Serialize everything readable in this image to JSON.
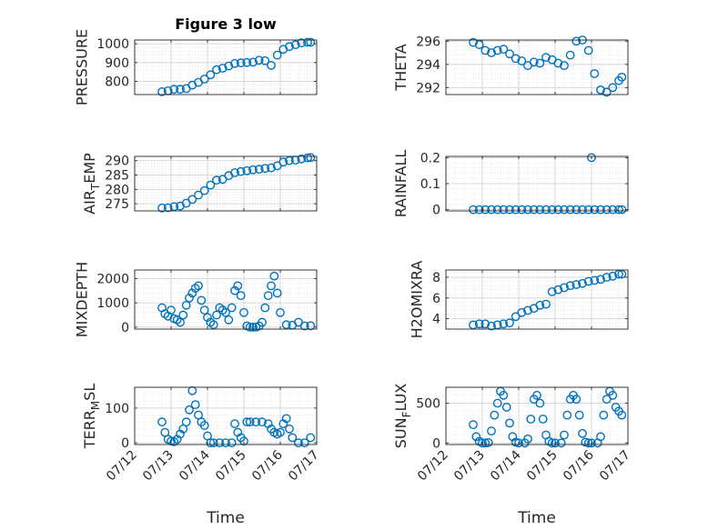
{
  "chart_data": [
    {
      "id": "pressure",
      "type": "scatter",
      "title": "Figure 3 low",
      "ylabel": "PRESSURE",
      "xlabel": "",
      "ylim": [
        730,
        1020
      ],
      "yticks": [
        800,
        900,
        1000
      ],
      "yticklabels": [
        "800",
        "900",
        "1000"
      ],
      "xticks_shown": false,
      "grid": true,
      "x": [
        "07/12 18:00",
        "07/12 22:00",
        "07/13 02:00",
        "07/13 06:00",
        "07/13 10:00",
        "07/13 14:00",
        "07/13 18:00",
        "07/13 22:00",
        "07/14 02:00",
        "07/14 06:00",
        "07/14 10:00",
        "07/14 14:00",
        "07/14 18:00",
        "07/14 22:00",
        "07/15 02:00",
        "07/15 06:00",
        "07/15 10:00",
        "07/15 14:00",
        "07/15 18:00",
        "07/15 22:00",
        "07/16 02:00",
        "07/16 06:00",
        "07/16 10:00",
        "07/16 14:00",
        "07/16 18:00",
        "07/16 20:00"
      ],
      "y": [
        745,
        750,
        758,
        758,
        762,
        780,
        795,
        812,
        835,
        862,
        870,
        882,
        895,
        898,
        900,
        902,
        912,
        910,
        885,
        940,
        970,
        985,
        995,
        1005,
        1008,
        1008
      ]
    },
    {
      "id": "theta",
      "type": "scatter",
      "title": "",
      "ylabel": "THETA",
      "xlabel": "",
      "ylim": [
        291.4,
        296.1
      ],
      "yticks": [
        292,
        294,
        296
      ],
      "yticklabels": [
        "292",
        "294",
        "296"
      ],
      "xticks_shown": false,
      "grid": true,
      "x": [
        "07/12 18:00",
        "07/12 22:00",
        "07/13 02:00",
        "07/13 06:00",
        "07/13 10:00",
        "07/13 14:00",
        "07/13 18:00",
        "07/13 22:00",
        "07/14 02:00",
        "07/14 06:00",
        "07/14 10:00",
        "07/14 14:00",
        "07/14 18:00",
        "07/14 22:00",
        "07/15 02:00",
        "07/15 06:00",
        "07/15 10:00",
        "07/15 14:00",
        "07/15 18:00",
        "07/15 22:00",
        "07/16 02:00",
        "07/16 06:00",
        "07/16 10:00",
        "07/16 14:00",
        "07/16 18:00",
        "07/16 20:00"
      ],
      "y": [
        295.9,
        295.7,
        295.2,
        295.0,
        295.2,
        295.3,
        294.9,
        294.5,
        294.3,
        293.9,
        294.2,
        294.1,
        294.6,
        294.4,
        294.1,
        293.9,
        294.8,
        296.0,
        296.1,
        295.2,
        293.2,
        291.8,
        291.6,
        292.0,
        292.6,
        292.9
      ]
    },
    {
      "id": "air-temp",
      "type": "scatter",
      "title": "",
      "ylabel": "AIR_TEMP",
      "xlabel": "",
      "ylim": [
        272.5,
        291.5
      ],
      "yticks": [
        275,
        280,
        285,
        290
      ],
      "yticklabels": [
        "275",
        "280",
        "285",
        "290"
      ],
      "xticks_shown": false,
      "grid": true,
      "x": [
        "07/12 18:00",
        "07/12 22:00",
        "07/13 02:00",
        "07/13 06:00",
        "07/13 10:00",
        "07/13 14:00",
        "07/13 18:00",
        "07/13 22:00",
        "07/14 02:00",
        "07/14 06:00",
        "07/14 10:00",
        "07/14 14:00",
        "07/14 18:00",
        "07/14 22:00",
        "07/15 02:00",
        "07/15 06:00",
        "07/15 10:00",
        "07/15 14:00",
        "07/15 18:00",
        "07/15 22:00",
        "07/16 02:00",
        "07/16 06:00",
        "07/16 10:00",
        "07/16 14:00",
        "07/16 18:00",
        "07/16 20:00"
      ],
      "y": [
        273.5,
        273.6,
        274.0,
        274.2,
        275.2,
        276.5,
        278.0,
        279.6,
        281.5,
        283.2,
        283.5,
        284.8,
        285.8,
        286.2,
        286.5,
        286.8,
        287.0,
        287.3,
        287.5,
        288.2,
        289.5,
        290.0,
        290.2,
        290.6,
        291.0,
        291.1
      ]
    },
    {
      "id": "rainfall",
      "type": "scatter",
      "title": "",
      "ylabel": "RAINFALL",
      "xlabel": "",
      "ylim": [
        -0.005,
        0.205
      ],
      "yticks": [
        0,
        0.1,
        0.2
      ],
      "yticklabels": [
        "0",
        "0.1",
        "0.2"
      ],
      "xticks_shown": false,
      "grid": true,
      "x": [
        "07/12 18:00",
        "07/12 22:00",
        "07/13 02:00",
        "07/13 06:00",
        "07/13 10:00",
        "07/13 14:00",
        "07/13 18:00",
        "07/13 22:00",
        "07/14 02:00",
        "07/14 06:00",
        "07/14 10:00",
        "07/14 14:00",
        "07/14 18:00",
        "07/14 22:00",
        "07/15 02:00",
        "07/15 06:00",
        "07/15 10:00",
        "07/15 14:00",
        "07/15 18:00",
        "07/15 22:00",
        "07/16 00:00",
        "07/16 02:00",
        "07/16 06:00",
        "07/16 10:00",
        "07/16 14:00",
        "07/16 18:00",
        "07/16 20:00"
      ],
      "y": [
        0,
        0,
        0,
        0,
        0,
        0,
        0,
        0,
        0,
        0,
        0,
        0,
        0,
        0,
        0,
        0,
        0,
        0,
        0,
        0,
        0.2,
        0,
        0,
        0,
        0,
        0,
        0
      ]
    },
    {
      "id": "mixdepth",
      "type": "scatter",
      "title": "",
      "ylabel": "MIXDEPTH",
      "xlabel": "",
      "ylim": [
        -80,
        2350
      ],
      "yticks": [
        0,
        1000,
        2000
      ],
      "yticklabels": [
        "0",
        "1000",
        "2000"
      ],
      "xticks_shown": false,
      "grid": true,
      "x": [
        "07/12 18:00",
        "07/12 20:00",
        "07/12 22:00",
        "07/13 00:00",
        "07/13 02:00",
        "07/13 04:00",
        "07/13 06:00",
        "07/13 08:00",
        "07/13 10:00",
        "07/13 12:00",
        "07/13 14:00",
        "07/13 16:00",
        "07/13 18:00",
        "07/13 20:00",
        "07/13 22:00",
        "07/14 00:00",
        "07/14 02:00",
        "07/14 04:00",
        "07/14 06:00",
        "07/14 08:00",
        "07/14 10:00",
        "07/14 12:00",
        "07/14 14:00",
        "07/14 16:00",
        "07/14 18:00",
        "07/14 20:00",
        "07/14 22:00",
        "07/15 00:00",
        "07/15 02:00",
        "07/15 04:00",
        "07/15 06:00",
        "07/15 08:00",
        "07/15 10:00",
        "07/15 12:00",
        "07/15 14:00",
        "07/15 16:00",
        "07/15 18:00",
        "07/15 20:00",
        "07/15 22:00",
        "07/16 00:00",
        "07/16 04:00",
        "07/16 08:00",
        "07/16 12:00",
        "07/16 16:00",
        "07/16 20:00"
      ],
      "y": [
        800,
        550,
        450,
        700,
        350,
        300,
        200,
        500,
        900,
        1200,
        1400,
        1600,
        1700,
        1100,
        700,
        400,
        200,
        100,
        500,
        800,
        700,
        600,
        300,
        800,
        1500,
        1700,
        1300,
        600,
        50,
        0,
        0,
        0,
        50,
        200,
        800,
        1300,
        1700,
        2100,
        1400,
        600,
        100,
        80,
        200,
        50,
        60
      ]
    },
    {
      "id": "h2omixra",
      "type": "scatter",
      "title": "",
      "ylabel": "H2OMIXRA",
      "xlabel": "",
      "ylim": [
        3.0,
        8.7
      ],
      "yticks": [
        4,
        6,
        8
      ],
      "yticklabels": [
        "4",
        "6",
        "8"
      ],
      "xticks_shown": false,
      "grid": true,
      "x": [
        "07/12 18:00",
        "07/12 22:00",
        "07/13 02:00",
        "07/13 06:00",
        "07/13 10:00",
        "07/13 14:00",
        "07/13 18:00",
        "07/13 22:00",
        "07/14 02:00",
        "07/14 06:00",
        "07/14 10:00",
        "07/14 14:00",
        "07/14 18:00",
        "07/14 22:00",
        "07/15 02:00",
        "07/15 06:00",
        "07/15 10:00",
        "07/15 14:00",
        "07/15 18:00",
        "07/15 22:00",
        "07/16 02:00",
        "07/16 06:00",
        "07/16 10:00",
        "07/16 14:00",
        "07/16 18:00",
        "07/16 20:00"
      ],
      "y": [
        3.4,
        3.5,
        3.5,
        3.3,
        3.4,
        3.5,
        3.6,
        4.2,
        4.6,
        4.8,
        5.0,
        5.3,
        5.4,
        6.6,
        6.8,
        7.0,
        7.2,
        7.3,
        7.4,
        7.6,
        7.7,
        7.8,
        8.0,
        8.1,
        8.3,
        8.3
      ]
    },
    {
      "id": "terr-msl",
      "type": "scatter",
      "title": "",
      "ylabel": "TERR_MSL",
      "xlabel": "Time",
      "ylim": [
        -5,
        160
      ],
      "yticks": [
        0,
        100
      ],
      "yticklabels": [
        "0",
        "100"
      ],
      "xticks_shown": true,
      "grid": true,
      "x": [
        "07/12 18:00",
        "07/12 20:00",
        "07/12 22:00",
        "07/13 00:00",
        "07/13 02:00",
        "07/13 04:00",
        "07/13 06:00",
        "07/13 08:00",
        "07/13 10:00",
        "07/13 12:00",
        "07/13 14:00",
        "07/13 16:00",
        "07/13 18:00",
        "07/13 20:00",
        "07/13 22:00",
        "07/14 00:00",
        "07/14 02:00",
        "07/14 04:00",
        "07/14 08:00",
        "07/14 12:00",
        "07/14 16:00",
        "07/14 18:00",
        "07/14 20:00",
        "07/14 22:00",
        "07/15 00:00",
        "07/15 02:00",
        "07/15 04:00",
        "07/15 08:00",
        "07/15 12:00",
        "07/15 16:00",
        "07/15 18:00",
        "07/15 20:00",
        "07/15 22:00",
        "07/16 00:00",
        "07/16 02:00",
        "07/16 04:00",
        "07/16 06:00",
        "07/16 08:00",
        "07/16 12:00",
        "07/16 16:00",
        "07/16 20:00"
      ],
      "y": [
        60,
        30,
        10,
        5,
        3,
        10,
        25,
        40,
        60,
        95,
        150,
        110,
        80,
        60,
        50,
        20,
        0,
        0,
        0,
        0,
        0,
        55,
        30,
        15,
        5,
        60,
        60,
        60,
        60,
        55,
        40,
        30,
        25,
        30,
        55,
        70,
        40,
        15,
        0,
        0,
        15
      ]
    },
    {
      "id": "sun-flux",
      "type": "scatter",
      "title": "",
      "ylabel": "SUN_FLUX",
      "xlabel": "Time",
      "ylim": [
        -20,
        700
      ],
      "yticks": [
        0,
        500
      ],
      "yticklabels": [
        "0",
        "500"
      ],
      "xticks_shown": true,
      "grid": true,
      "x": [
        "07/12 18:00",
        "07/12 20:00",
        "07/12 22:00",
        "07/13 00:00",
        "07/13 02:00",
        "07/13 04:00",
        "07/13 06:00",
        "07/13 08:00",
        "07/13 10:00",
        "07/13 12:00",
        "07/13 14:00",
        "07/13 16:00",
        "07/13 18:00",
        "07/13 20:00",
        "07/13 22:00",
        "07/14 00:00",
        "07/14 04:00",
        "07/14 06:00",
        "07/14 08:00",
        "07/14 10:00",
        "07/14 12:00",
        "07/14 14:00",
        "07/14 16:00",
        "07/14 18:00",
        "07/14 20:00",
        "07/14 22:00",
        "07/15 00:00",
        "07/15 04:00",
        "07/15 06:00",
        "07/15 08:00",
        "07/15 10:00",
        "07/15 12:00",
        "07/15 14:00",
        "07/15 16:00",
        "07/15 18:00",
        "07/15 20:00",
        "07/15 22:00",
        "07/16 00:00",
        "07/16 04:00",
        "07/16 06:00",
        "07/16 08:00",
        "07/16 10:00",
        "07/16 12:00",
        "07/16 14:00",
        "07/16 16:00",
        "07/16 18:00",
        "07/16 20:00"
      ],
      "y": [
        230,
        80,
        20,
        0,
        0,
        5,
        150,
        350,
        500,
        650,
        600,
        450,
        250,
        80,
        10,
        0,
        0,
        50,
        300,
        550,
        600,
        500,
        300,
        100,
        20,
        0,
        0,
        0,
        100,
        350,
        550,
        600,
        550,
        350,
        120,
        10,
        0,
        0,
        0,
        80,
        350,
        550,
        650,
        600,
        450,
        400,
        350
      ]
    }
  ],
  "x_axis": {
    "range": [
      "07/12 00:00",
      "07/17 00:00"
    ],
    "ticks": [
      "07/12",
      "07/13",
      "07/14",
      "07/15",
      "07/16",
      "07/17"
    ]
  },
  "colors": {
    "marker": "#0072BD",
    "axis": "#262626",
    "grid": "#d9d9d9"
  }
}
